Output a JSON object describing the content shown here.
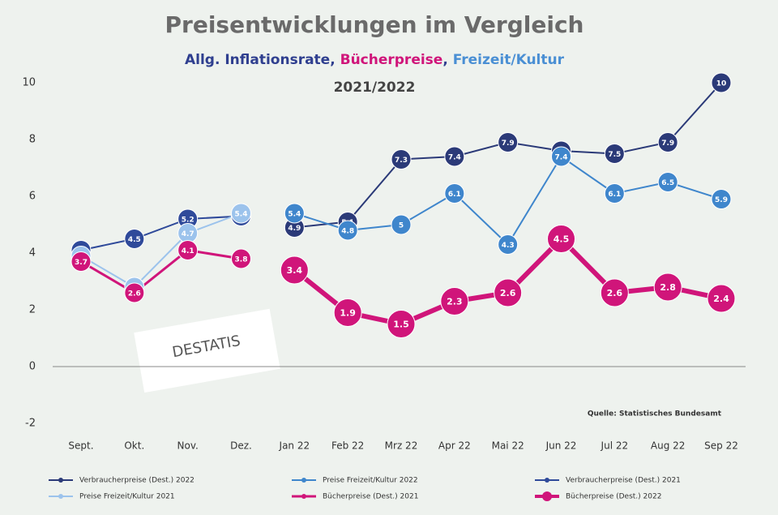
{
  "chart_data": {
    "type": "line",
    "title": "Preisentwicklungen im  Vergleich",
    "subtitle": [
      {
        "text": "Allg. Inflationsrate",
        "color": "#2f3f8f"
      },
      {
        "text": ", ",
        "color": "#2f3f8f"
      },
      {
        "text": "Bücherpreise",
        "color": "#d0157a"
      },
      {
        "text": ", ",
        "color": "#2f3f8f"
      },
      {
        "text": "Freizeit/Kultur",
        "color": "#4a8fd4"
      }
    ],
    "period": "2021/2022",
    "source": "Quelle: Statistisches Bundesamt",
    "logo_text": "DESTATIS",
    "categories": [
      "Sept.",
      "Okt.",
      "Nov.",
      "Dez.",
      "Jan 22",
      "Feb 22",
      "Mrz 22",
      "Apr 22",
      "Mai 22",
      "Jun 22",
      "Jul 22",
      "Aug 22",
      "Sep 22"
    ],
    "ylim": [
      -2,
      10
    ],
    "yticks": [
      -2,
      0,
      2,
      4,
      6,
      8,
      10
    ],
    "series": [
      {
        "name": "Verbraucherpreise (Dest.) 2022",
        "color": "#2b3a78",
        "line_width": 2,
        "values": [
          null,
          null,
          null,
          null,
          4.9,
          5.1,
          7.3,
          7.4,
          7.9,
          7.6,
          7.5,
          7.9,
          10.0
        ]
      },
      {
        "name": "Preise Freizeit/Kultur 2022",
        "color": "#3f86cc",
        "line_width": 2,
        "values": [
          null,
          null,
          null,
          null,
          5.4,
          4.8,
          5.0,
          6.1,
          4.3,
          7.4,
          6.1,
          6.5,
          5.9
        ]
      },
      {
        "name": "Verbraucherpreise (Dest.) 2021",
        "color": "#2f4a9a",
        "line_width": 2,
        "values": [
          4.1,
          4.5,
          5.2,
          5.3,
          null,
          null,
          null,
          null,
          null,
          null,
          null,
          null,
          null
        ]
      },
      {
        "name": "Preise Freizeit/Kultur 2021",
        "color": "#9cc3ec",
        "line_width": 2,
        "values": [
          3.9,
          2.8,
          4.7,
          5.4,
          null,
          null,
          null,
          null,
          null,
          null,
          null,
          null,
          null
        ]
      },
      {
        "name": "Bücherpreise (Dest.) 2021",
        "color": "#d0157a",
        "line_width": 3,
        "values": [
          3.7,
          2.6,
          4.1,
          3.8,
          null,
          null,
          null,
          null,
          null,
          null,
          null,
          null,
          null
        ]
      },
      {
        "name": "Bücherpreise (Dest.) 2022",
        "color": "#d0157a",
        "line_width": 6,
        "values": [
          null,
          null,
          null,
          null,
          3.4,
          1.9,
          1.5,
          2.3,
          2.6,
          4.5,
          2.6,
          2.8,
          2.4
        ]
      }
    ]
  }
}
